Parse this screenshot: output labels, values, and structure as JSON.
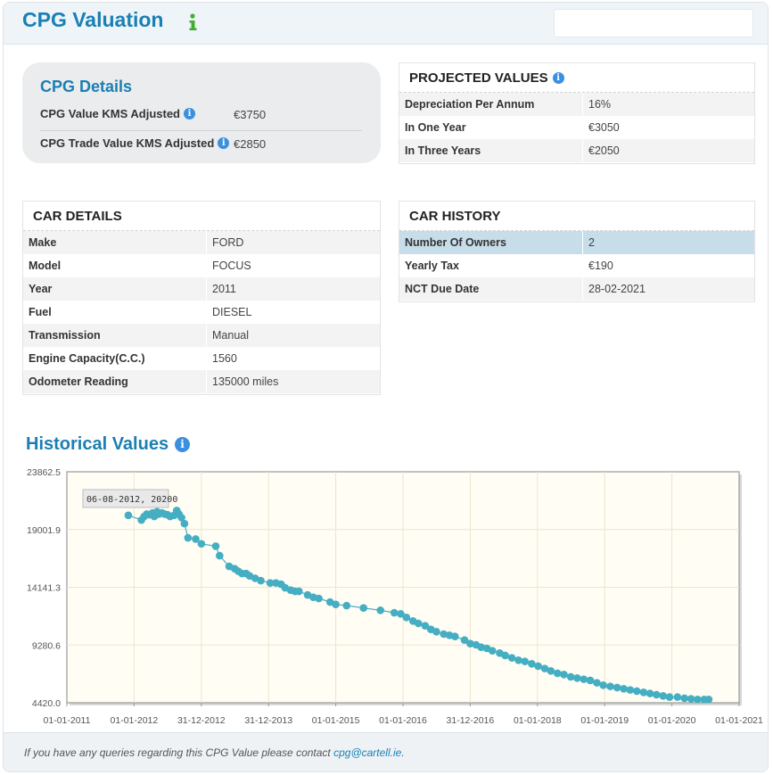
{
  "header": {
    "title": "CPG Valuation",
    "info_icon": "info-icon-green",
    "search_value": ""
  },
  "cpg_details": {
    "title": "CPG Details",
    "rows": [
      {
        "label": "CPG Value KMS Adjusted",
        "value": "€3750"
      },
      {
        "label": "CPG Trade Value KMS Adjusted",
        "value": "€2850"
      }
    ]
  },
  "projected_values": {
    "title": "PROJECTED VALUES",
    "rows": [
      {
        "label": "Depreciation Per Annum",
        "value": "16%"
      },
      {
        "label": "In One Year",
        "value": "€3050"
      },
      {
        "label": "In Three Years",
        "value": "€2050"
      }
    ]
  },
  "car_details": {
    "title": "CAR DETAILS",
    "rows": [
      {
        "label": "Make",
        "value": "FORD"
      },
      {
        "label": "Model",
        "value": "FOCUS"
      },
      {
        "label": "Year",
        "value": "2011"
      },
      {
        "label": "Fuel",
        "value": "DIESEL"
      },
      {
        "label": "Transmission",
        "value": "Manual"
      },
      {
        "label": "Engine Capacity(C.C.)",
        "value": "1560"
      },
      {
        "label": "Odometer Reading",
        "value": "135000 miles"
      }
    ]
  },
  "car_history": {
    "title": "CAR HISTORY",
    "rows": [
      {
        "label": "Number Of Owners",
        "value": "2"
      },
      {
        "label": "Yearly Tax",
        "value": "€190"
      },
      {
        "label": "NCT Due Date",
        "value": "28-02-2021"
      }
    ]
  },
  "historical": {
    "title": "Historical Values"
  },
  "chart_data": {
    "type": "line",
    "title": "",
    "xlabel": "",
    "ylabel": "",
    "ylim": [
      4420.0,
      23862.5
    ],
    "xlim": [
      "2011-01-01",
      "2021-01-01"
    ],
    "y_ticks": [
      "23862.5",
      "19001.9",
      "14141.3",
      "9280.6",
      "4420.0"
    ],
    "x_ticks": [
      "01-01-2011",
      "01-01-2012",
      "31-12-2012",
      "31-12-2013",
      "01-01-2015",
      "01-01-2016",
      "31-12-2016",
      "01-01-2018",
      "01-01-2019",
      "01-01-2020",
      "01-01-2021"
    ],
    "tooltip": "06-08-2012, 20200",
    "background": "#fffdf4",
    "series_color": "#45aec2",
    "series": [
      {
        "name": "",
        "x": [
          "2011-12-01",
          "2012-02-10",
          "2012-02-25",
          "2012-03-10",
          "2012-03-25",
          "2012-04-10",
          "2012-04-20",
          "2012-05-05",
          "2012-05-15",
          "2012-06-01",
          "2012-06-15",
          "2012-07-01",
          "2012-07-15",
          "2012-08-06",
          "2012-08-20",
          "2012-09-01",
          "2012-09-15",
          "2012-10-01",
          "2012-10-20",
          "2012-12-01",
          "2013-01-01",
          "2013-03-20",
          "2013-04-10",
          "2013-06-01",
          "2013-07-01",
          "2013-07-20",
          "2013-08-10",
          "2013-09-01",
          "2013-09-20",
          "2013-10-20",
          "2013-11-20",
          "2014-01-10",
          "2014-02-10",
          "2014-03-10",
          "2014-04-01",
          "2014-05-01",
          "2014-05-25",
          "2014-06-15",
          "2014-08-01",
          "2014-09-01",
          "2014-10-01",
          "2014-12-01",
          "2015-01-01",
          "2015-03-01",
          "2015-06-01",
          "2015-09-01",
          "2015-11-15",
          "2015-12-20",
          "2016-01-20",
          "2016-02-25",
          "2016-03-25",
          "2016-05-01",
          "2016-06-01",
          "2016-07-01",
          "2016-08-10",
          "2016-09-10",
          "2016-10-10",
          "2016-12-01",
          "2017-01-01",
          "2017-02-01",
          "2017-03-01",
          "2017-04-01",
          "2017-05-01",
          "2017-06-10",
          "2017-07-10",
          "2017-08-15",
          "2017-09-20",
          "2017-10-25",
          "2017-12-01",
          "2018-01-05",
          "2018-02-10",
          "2018-03-15",
          "2018-04-20",
          "2018-05-25",
          "2018-07-01",
          "2018-08-05",
          "2018-09-10",
          "2018-10-15",
          "2018-11-20",
          "2018-12-25",
          "2019-02-01",
          "2019-03-10",
          "2019-04-15",
          "2019-05-20",
          "2019-06-25",
          "2019-08-01",
          "2019-09-05",
          "2019-10-10",
          "2019-11-15",
          "2019-12-20",
          "2020-02-01",
          "2020-03-10",
          "2020-04-15",
          "2020-05-20",
          "2020-06-25",
          "2020-07-20"
        ],
        "y": [
          20200,
          19800,
          20100,
          20300,
          20250,
          20400,
          20100,
          20500,
          20300,
          20400,
          20300,
          20250,
          20100,
          20200,
          20600,
          20300,
          20000,
          19500,
          18300,
          18200,
          17800,
          17600,
          16800,
          15900,
          15700,
          15500,
          15300,
          15300,
          15100,
          14900,
          14700,
          14500,
          14500,
          14400,
          14100,
          13900,
          13800,
          13800,
          13500,
          13300,
          13200,
          12900,
          12700,
          12600,
          12400,
          12200,
          12000,
          11900,
          11600,
          11300,
          11100,
          10900,
          10600,
          10400,
          10200,
          10100,
          10000,
          9700,
          9400,
          9300,
          9100,
          9000,
          8800,
          8600,
          8400,
          8200,
          8000,
          7900,
          7700,
          7500,
          7300,
          7100,
          6900,
          6800,
          6600,
          6500,
          6400,
          6300,
          6100,
          5900,
          5800,
          5700,
          5600,
          5500,
          5400,
          5300,
          5200,
          5100,
          5000,
          4900,
          4900,
          4800,
          4750,
          4700,
          4700,
          4700
        ]
      }
    ]
  },
  "footer": {
    "text": "If you have any queries regarding this CPG Value please contact ",
    "email": "cpg@cartell.ie",
    "tail": "."
  }
}
